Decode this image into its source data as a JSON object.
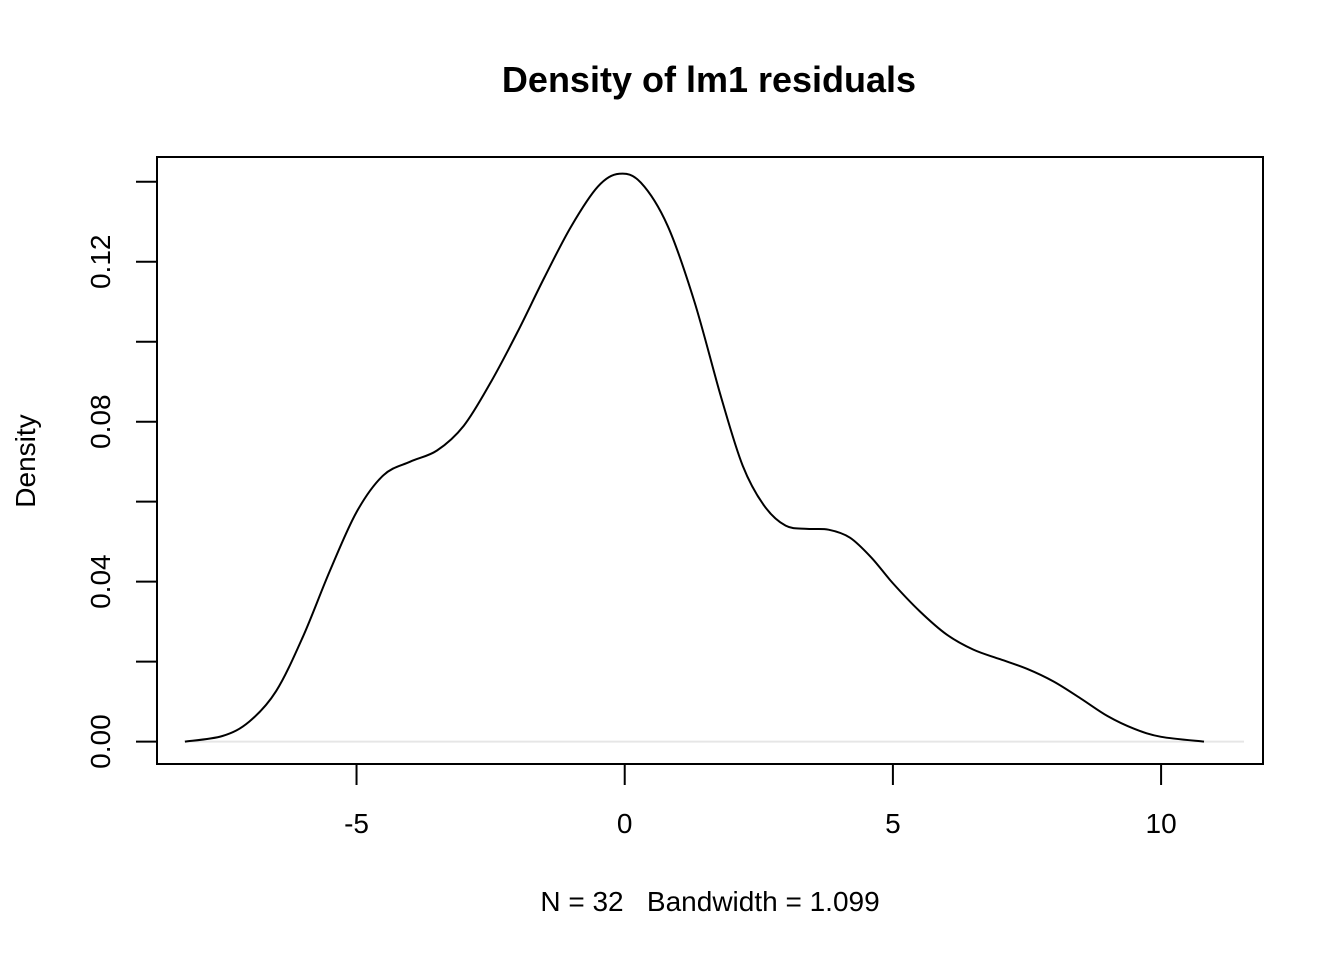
{
  "chart_data": {
    "type": "line",
    "title": "Density of lm1 residuals",
    "xlabel": "N = 32   Bandwidth = 1.099",
    "ylabel": "Density",
    "xlim": [
      -8.72,
      11.9
    ],
    "ylim": [
      -0.0056,
      0.1462
    ],
    "x_ticks": [
      -5,
      0,
      5,
      10
    ],
    "x_tick_labels": [
      "-5",
      "0",
      "5",
      "10"
    ],
    "y_ticks": [
      0.0,
      0.02,
      0.04,
      0.06,
      0.08,
      0.1,
      0.12,
      0.14
    ],
    "y_tick_labels": [
      "0.00",
      "",
      "0.04",
      "",
      "0.08",
      "",
      "0.12",
      ""
    ],
    "grid": false,
    "legend": "none",
    "zero_line": true,
    "colors": {
      "line": "#000000",
      "zero_line": "#e6e6e6"
    },
    "series": [
      {
        "values_x": [
          -8.2,
          -7.5,
          -7.0,
          -6.5,
          -6.0,
          -5.5,
          -5.0,
          -4.5,
          -4.0,
          -3.5,
          -3.0,
          -2.5,
          -2.0,
          -1.5,
          -1.0,
          -0.5,
          -0.1,
          0.3,
          0.8,
          1.3,
          1.8,
          2.2,
          2.6,
          3.0,
          3.4,
          3.8,
          4.2,
          4.6,
          5.0,
          5.5,
          6.0,
          6.5,
          7.0,
          7.5,
          8.0,
          8.5,
          9.0,
          9.5,
          10.0,
          10.8
        ],
        "values_y": [
          0.0,
          0.0014,
          0.005,
          0.0126,
          0.0262,
          0.0426,
          0.0574,
          0.0666,
          0.07,
          0.0728,
          0.079,
          0.0898,
          0.1024,
          0.116,
          0.1288,
          0.1388,
          0.142,
          0.1398,
          0.129,
          0.11,
          0.086,
          0.069,
          0.059,
          0.054,
          0.0532,
          0.053,
          0.051,
          0.046,
          0.0396,
          0.0326,
          0.0268,
          0.023,
          0.0206,
          0.0182,
          0.015,
          0.0108,
          0.0064,
          0.0032,
          0.0012,
          0.0
        ]
      }
    ]
  }
}
